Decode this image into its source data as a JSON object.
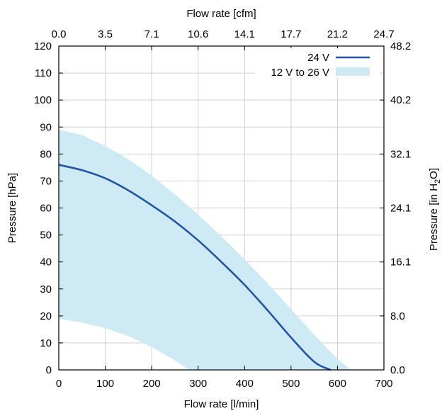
{
  "chart_data": {
    "type": "area",
    "xlabel": "Flow rate [l/min]",
    "ylabel": "Pressure [hPa]",
    "x2label": "Flow rate [cfm]",
    "y2label_main": "Pressure [in H",
    "y2label_sub": "2",
    "y2label_end": "O]",
    "xlim": [
      0,
      700
    ],
    "ylim": [
      0,
      120
    ],
    "x_ticks": [
      0,
      100,
      200,
      300,
      400,
      500,
      600,
      700
    ],
    "x_tick_labels": [
      "0",
      "100",
      "200",
      "300",
      "400",
      "500",
      "600",
      "700"
    ],
    "y_ticks": [
      0,
      10,
      20,
      30,
      40,
      50,
      60,
      70,
      80,
      90,
      100,
      110,
      120
    ],
    "y_tick_labels": [
      "0",
      "10",
      "20",
      "30",
      "40",
      "50",
      "60",
      "70",
      "80",
      "90",
      "100",
      "110",
      "120"
    ],
    "x2_tick_labels": [
      "0.0",
      "3.5",
      "7.1",
      "10.6",
      "14.1",
      "17.7",
      "21.2",
      "24.7"
    ],
    "y2_ticks": [
      0,
      20,
      40,
      60,
      80,
      100,
      120
    ],
    "y2_tick_labels": [
      "0.0",
      "8.0",
      "16.1",
      "24.1",
      "32.1",
      "40.2",
      "48.2"
    ],
    "grid": true,
    "legend_position": "top-right",
    "series": [
      {
        "name": "24 V",
        "kind": "line",
        "color": "#2255a8",
        "x": [
          0,
          50,
          100,
          150,
          200,
          250,
          300,
          350,
          400,
          450,
          500,
          550,
          585
        ],
        "y": [
          76,
          74,
          71,
          66.5,
          61,
          55,
          48,
          40,
          31.5,
          22,
          12,
          3,
          0
        ]
      },
      {
        "name": "12 V to 26 V",
        "kind": "band",
        "color": "#cdeaf5",
        "x_upper": [
          0,
          50,
          100,
          150,
          200,
          250,
          300,
          350,
          400,
          450,
          500,
          550,
          600,
          630
        ],
        "upper": [
          89,
          87,
          83,
          78,
          72,
          65,
          57.5,
          49.5,
          41,
          32,
          22.5,
          13,
          4,
          0
        ],
        "x_lower": [
          0,
          50,
          100,
          150,
          200,
          250,
          280
        ],
        "lower": [
          19,
          17.5,
          15.5,
          12.5,
          8.5,
          3.5,
          0
        ]
      }
    ]
  }
}
